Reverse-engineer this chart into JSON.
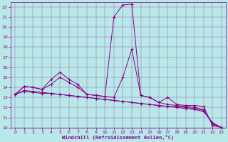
{
  "xlabel": "Windchill (Refroidissement éolien,°C)",
  "xlim": [
    -0.5,
    23.5
  ],
  "ylim": [
    10,
    22.5
  ],
  "yticks": [
    10,
    11,
    12,
    13,
    14,
    15,
    16,
    17,
    18,
    19,
    20,
    21,
    22
  ],
  "xticks": [
    0,
    1,
    2,
    3,
    4,
    5,
    6,
    7,
    8,
    9,
    10,
    11,
    12,
    13,
    14,
    15,
    16,
    17,
    18,
    19,
    20,
    21,
    22,
    23
  ],
  "background_color": "#b8e8e8",
  "line_color": "#880088",
  "series": [
    [
      13.3,
      14.1,
      14.0,
      13.8,
      14.8,
      15.5,
      14.8,
      14.3,
      13.3,
      13.2,
      13.1,
      21.0,
      22.2,
      22.3,
      13.2,
      13.0,
      12.5,
      13.0,
      12.3,
      12.2,
      12.2,
      12.1,
      10.2,
      10.0
    ],
    [
      13.3,
      14.1,
      14.0,
      13.8,
      14.3,
      15.0,
      14.5,
      14.0,
      13.3,
      13.2,
      13.1,
      13.0,
      15.0,
      17.8,
      13.2,
      13.0,
      12.5,
      12.3,
      12.2,
      12.1,
      12.0,
      11.8,
      10.3,
      10.0
    ],
    [
      13.3,
      13.6,
      13.5,
      13.4,
      13.4,
      13.3,
      13.2,
      13.1,
      13.0,
      12.9,
      12.8,
      12.7,
      12.6,
      12.5,
      12.4,
      12.3,
      12.2,
      12.1,
      12.0,
      11.9,
      11.8,
      11.6,
      10.5,
      10.0
    ],
    [
      13.3,
      13.7,
      13.6,
      13.5,
      13.4,
      13.3,
      13.2,
      13.1,
      13.0,
      12.9,
      12.8,
      12.7,
      12.6,
      12.5,
      12.4,
      12.3,
      12.2,
      12.1,
      12.1,
      12.0,
      11.9,
      11.7,
      10.4,
      10.0
    ]
  ]
}
